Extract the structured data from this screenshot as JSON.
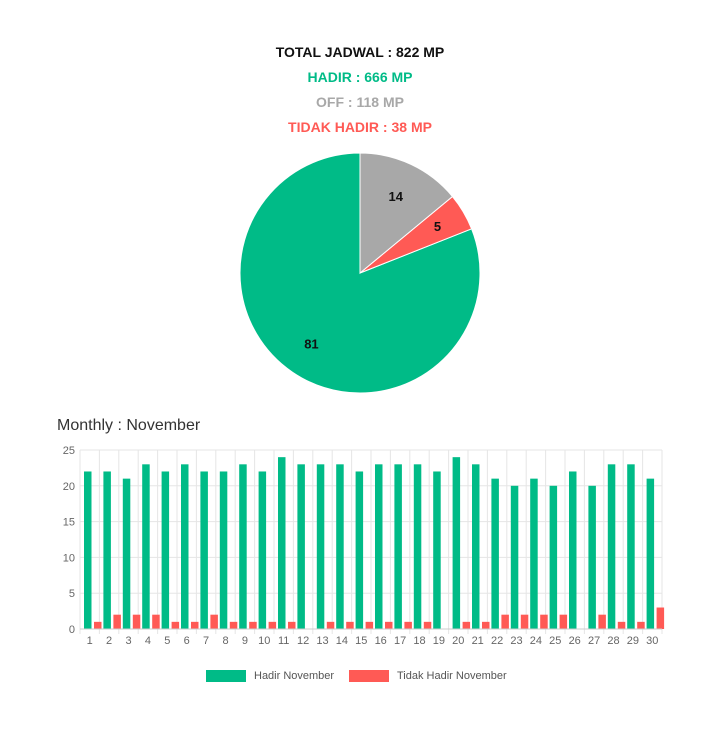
{
  "summary": {
    "total": "TOTAL JADWAL : 822 MP",
    "hadir": "HADIR : 666 MP",
    "off": "OFF : 118 MP",
    "tidak_hadir": "TIDAK HADIR : 38 MP"
  },
  "monthly_title": "Monthly : November",
  "colors": {
    "hadir": "#00bb87",
    "tidak_hadir": "#ff5a55",
    "off": "#a8a8a8"
  },
  "chart_data": [
    {
      "type": "pie",
      "slices": [
        {
          "label": "81",
          "value": 81,
          "color": "#00bb87"
        },
        {
          "label": "5",
          "value": 5,
          "color": "#ff5a55"
        },
        {
          "label": "14",
          "value": 14,
          "color": "#a8a8a8"
        }
      ]
    },
    {
      "type": "bar",
      "categories": [
        "1",
        "2",
        "3",
        "4",
        "5",
        "6",
        "7",
        "8",
        "9",
        "10",
        "11",
        "12",
        "13",
        "14",
        "15",
        "16",
        "17",
        "18",
        "19",
        "20",
        "21",
        "22",
        "23",
        "24",
        "25",
        "26",
        "27",
        "28",
        "29",
        "30"
      ],
      "series": [
        {
          "name": "Hadir November",
          "color": "#00bb87",
          "values": [
            22,
            22,
            21,
            23,
            22,
            23,
            22,
            22,
            23,
            22,
            24,
            23,
            23,
            23,
            22,
            23,
            23,
            23,
            22,
            24,
            23,
            21,
            20,
            21,
            20,
            22,
            20,
            23,
            23,
            21
          ]
        },
        {
          "name": "Tidak Hadir November",
          "color": "#ff5a55",
          "values": [
            1,
            2,
            2,
            2,
            1,
            1,
            2,
            1,
            1,
            1,
            1,
            0,
            1,
            1,
            1,
            1,
            1,
            1,
            0,
            1,
            1,
            2,
            2,
            2,
            2,
            0,
            2,
            1,
            1,
            3
          ]
        }
      ],
      "ylim": [
        0,
        25
      ],
      "yticks": [
        0,
        5,
        10,
        15,
        20,
        25
      ],
      "grid": true,
      "legend": "bottom"
    }
  ]
}
